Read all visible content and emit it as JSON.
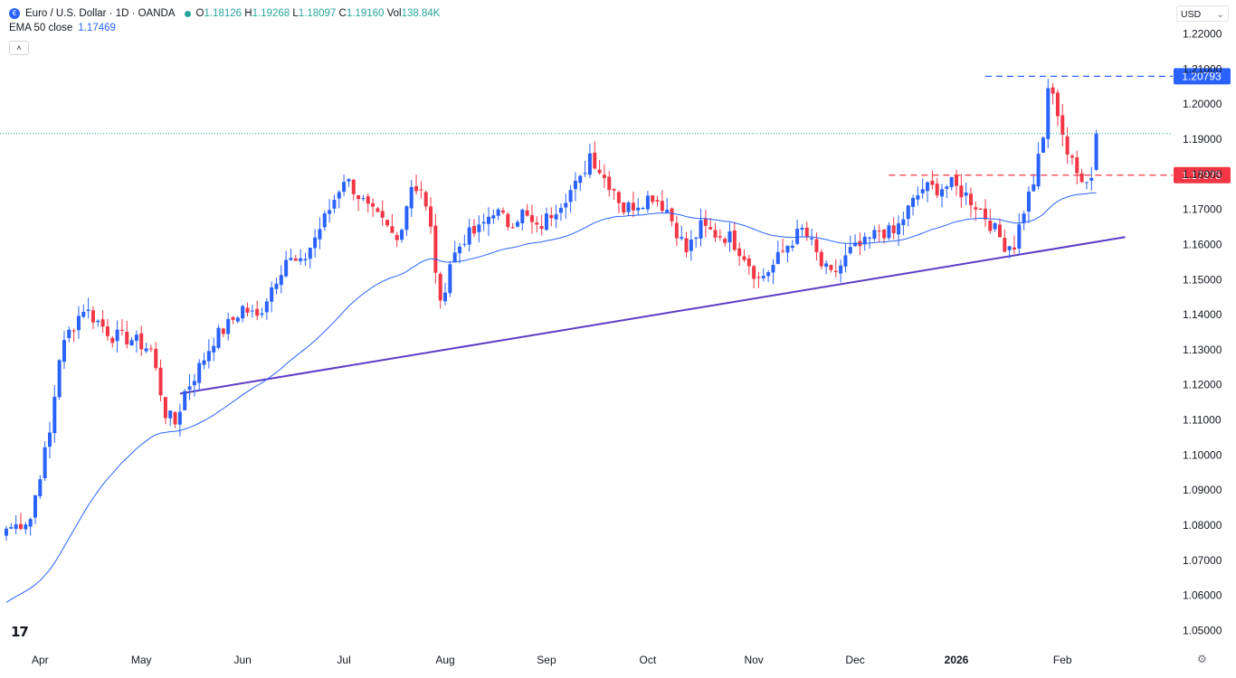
{
  "header": {
    "symbol_title": "Euro / U.S. Dollar · 1D · OANDA",
    "open_label": "O",
    "open": "1.18126",
    "high_label": "H",
    "high": "1.19268",
    "low_label": "L",
    "low": "1.18097",
    "close_label": "C",
    "close": "1.19160",
    "vol_label": "Vol",
    "vol": "138.84K",
    "indicator_label": "EMA 50 close",
    "indicator_value": "1.17469",
    "collapse_glyph": "˄",
    "logo_glyph": "€"
  },
  "currency_selector": {
    "value": "USD",
    "chevron": "⌄"
  },
  "branding": {
    "logo_text": "17",
    "settings_glyph": "⚙"
  },
  "colors": {
    "up": "#2962ff",
    "down": "#f23645",
    "ema": "#2962ff",
    "trendline": "#5b3cc4",
    "resistance": "#2962ff",
    "support": "#f23645",
    "price_line": "#26a69a"
  },
  "chart_data": {
    "type": "candlestick",
    "title": "Euro / U.S. Dollar · 1D · OANDA",
    "ylim": [
      1.0465,
      1.2222
    ],
    "y_ticks": [
      "1.05000",
      "1.06000",
      "1.07000",
      "1.08000",
      "1.09000",
      "1.10000",
      "1.11000",
      "1.12000",
      "1.13000",
      "1.14000",
      "1.15000",
      "1.16000",
      "1.17000",
      "1.18000",
      "1.19000",
      "1.20000",
      "1.21000",
      "1.22000"
    ],
    "x_ticks": [
      {
        "label": "Apr",
        "index": 7
      },
      {
        "label": "May",
        "index": 28
      },
      {
        "label": "Jun",
        "index": 49
      },
      {
        "label": "Jul",
        "index": 70
      },
      {
        "label": "Aug",
        "index": 91
      },
      {
        "label": "Sep",
        "index": 112
      },
      {
        "label": "Oct",
        "index": 133
      },
      {
        "label": "Nov",
        "index": 155
      },
      {
        "label": "Dec",
        "index": 176
      },
      {
        "label": "2026",
        "index": 197,
        "bold": true
      },
      {
        "label": "Feb",
        "index": 219
      }
    ],
    "anchors": [
      [
        0,
        1.079
      ],
      [
        2,
        1.08
      ],
      [
        5,
        1.082
      ],
      [
        7,
        1.095
      ],
      [
        9,
        1.106
      ],
      [
        11,
        1.128
      ],
      [
        13,
        1.135
      ],
      [
        16,
        1.142
      ],
      [
        19,
        1.138
      ],
      [
        22,
        1.134
      ],
      [
        26,
        1.133
      ],
      [
        30,
        1.13
      ],
      [
        33,
        1.112
      ],
      [
        35,
        1.109
      ],
      [
        37,
        1.118
      ],
      [
        40,
        1.125
      ],
      [
        43,
        1.133
      ],
      [
        46,
        1.137
      ],
      [
        49,
        1.142
      ],
      [
        52,
        1.139
      ],
      [
        55,
        1.148
      ],
      [
        58,
        1.156
      ],
      [
        61,
        1.154
      ],
      [
        64,
        1.162
      ],
      [
        67,
        1.17
      ],
      [
        70,
        1.179
      ],
      [
        72,
        1.176
      ],
      [
        75,
        1.17
      ],
      [
        78,
        1.166
      ],
      [
        81,
        1.161
      ],
      [
        84,
        1.177
      ],
      [
        86,
        1.176
      ],
      [
        88,
        1.164
      ],
      [
        90,
        1.142
      ],
      [
        92,
        1.155
      ],
      [
        95,
        1.162
      ],
      [
        98,
        1.164
      ],
      [
        101,
        1.17
      ],
      [
        104,
        1.166
      ],
      [
        107,
        1.169
      ],
      [
        110,
        1.164
      ],
      [
        113,
        1.169
      ],
      [
        116,
        1.174
      ],
      [
        119,
        1.178
      ],
      [
        121,
        1.186
      ],
      [
        124,
        1.179
      ],
      [
        126,
        1.176
      ],
      [
        128,
        1.17
      ],
      [
        131,
        1.172
      ],
      [
        134,
        1.174
      ],
      [
        137,
        1.17
      ],
      [
        139,
        1.164
      ],
      [
        141,
        1.158
      ],
      [
        144,
        1.165
      ],
      [
        147,
        1.163
      ],
      [
        150,
        1.162
      ],
      [
        153,
        1.157
      ],
      [
        156,
        1.15
      ],
      [
        159,
        1.154
      ],
      [
        162,
        1.16
      ],
      [
        165,
        1.164
      ],
      [
        167,
        1.16
      ],
      [
        169,
        1.154
      ],
      [
        171,
        1.151
      ],
      [
        173,
        1.154
      ],
      [
        175,
        1.158
      ],
      [
        178,
        1.16
      ],
      [
        181,
        1.164
      ],
      [
        184,
        1.163
      ],
      [
        187,
        1.17
      ],
      [
        190,
        1.176
      ],
      [
        193,
        1.176
      ],
      [
        196,
        1.177
      ],
      [
        199,
        1.174
      ],
      [
        202,
        1.17
      ],
      [
        205,
        1.164
      ],
      [
        207,
        1.16
      ],
      [
        209,
        1.16
      ],
      [
        211,
        1.17
      ],
      [
        213,
        1.178
      ],
      [
        215,
        1.19
      ],
      [
        216,
        1.205
      ],
      [
        218,
        1.198
      ],
      [
        220,
        1.186
      ],
      [
        222,
        1.18
      ],
      [
        225,
        1.179
      ],
      [
        226,
        1.1816
      ]
    ],
    "last_candle": {
      "open": 1.18126,
      "high": 1.19268,
      "low": 1.18097,
      "close": 1.1916
    },
    "series": [
      {
        "name": "EMA 50 close",
        "type": "line",
        "last_value": 1.17469
      }
    ],
    "annotations": [
      {
        "type": "horizontal",
        "name": "resistance",
        "value": 1.20793,
        "label": "1.20793",
        "style": "dashed",
        "from_index": 203
      },
      {
        "type": "horizontal",
        "name": "support",
        "value": 1.17975,
        "label": "1.17975",
        "style": "dashed",
        "from_index": 183
      },
      {
        "type": "horizontal",
        "name": "last-price",
        "value": 1.1916,
        "style": "dotted"
      },
      {
        "type": "trendline",
        "name": "ascending-trendline",
        "points": [
          [
            36,
            1.1175
          ],
          [
            232,
            1.1621
          ]
        ]
      }
    ]
  }
}
